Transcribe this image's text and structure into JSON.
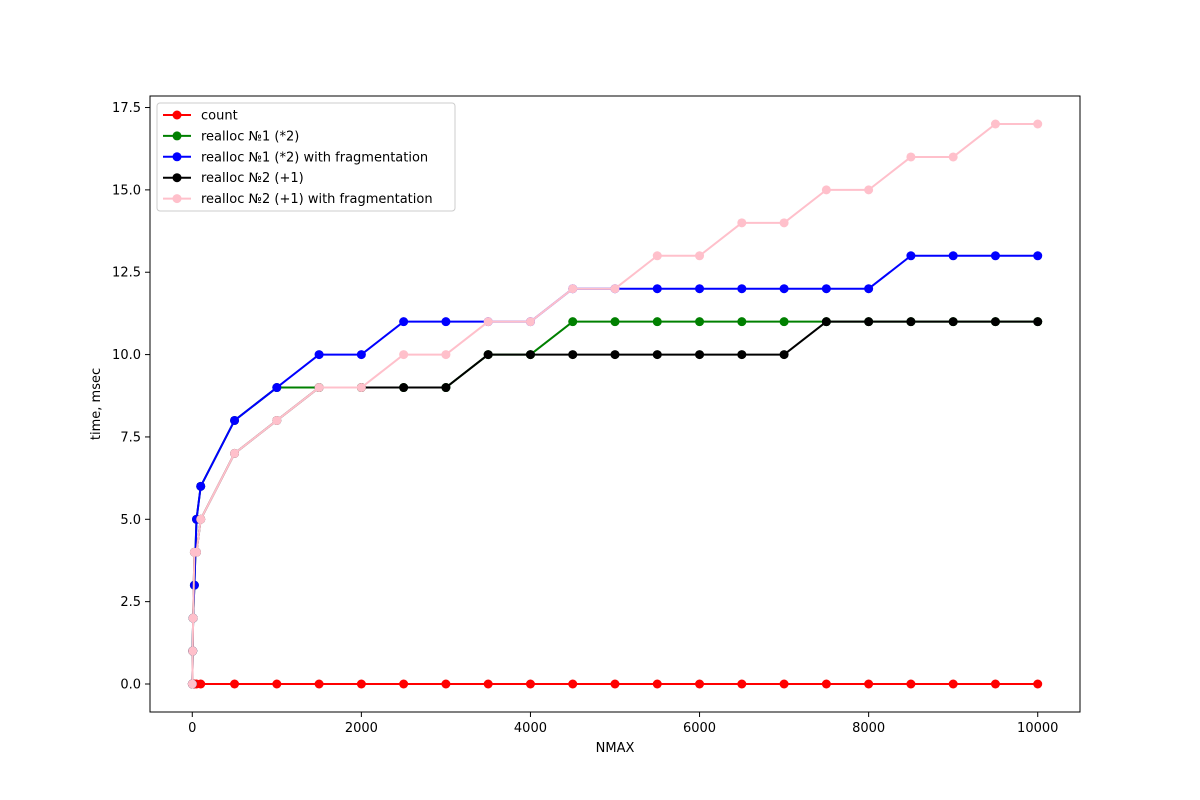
{
  "chart_data": {
    "type": "line",
    "title": "",
    "xlabel": "NMAX",
    "ylabel": "time, msec",
    "xlim": [
      -500,
      10500
    ],
    "ylim": [
      -0.85,
      17.85
    ],
    "xticks": [
      0,
      2000,
      4000,
      6000,
      8000,
      10000
    ],
    "xtick_labels": [
      "0",
      "2000",
      "4000",
      "6000",
      "8000",
      "10000"
    ],
    "yticks": [
      0,
      2.5,
      5,
      7.5,
      10,
      12.5,
      15,
      17.5
    ],
    "ytick_labels": [
      "0.0",
      "2.5",
      "5.0",
      "7.5",
      "10.0",
      "12.5",
      "15.0",
      "17.5"
    ],
    "grid": false,
    "legend_position": "top-left",
    "x": [
      1,
      5,
      10,
      25,
      50,
      100,
      500,
      1000,
      1500,
      2000,
      2500,
      3000,
      3500,
      4000,
      4500,
      5000,
      5500,
      6000,
      6500,
      7000,
      7500,
      8000,
      8500,
      9000,
      9500,
      10000
    ],
    "series": [
      {
        "name": "count",
        "color": "#ff0000",
        "values": [
          0,
          0,
          0,
          0,
          0,
          0,
          0,
          0,
          0,
          0,
          0,
          0,
          0,
          0,
          0,
          0,
          0,
          0,
          0,
          0,
          0,
          0,
          0,
          0,
          0,
          0
        ]
      },
      {
        "name": "realloc №1 (*2)",
        "color": "#008000",
        "values": [
          0,
          1,
          2,
          3,
          5,
          6,
          8,
          9,
          9,
          9,
          9,
          9,
          10,
          10,
          11,
          11,
          11,
          11,
          11,
          11,
          11,
          11,
          11,
          11,
          11,
          11
        ]
      },
      {
        "name": "realloc №1 (*2) with fragmentation",
        "color": "#0000ff",
        "values": [
          0,
          1,
          2,
          3,
          5,
          6,
          8,
          9,
          10,
          10,
          11,
          11,
          11,
          11,
          12,
          12,
          12,
          12,
          12,
          12,
          12,
          12,
          13,
          13,
          13,
          13
        ]
      },
      {
        "name": "realloc №2 (+1)",
        "color": "#000000",
        "values": [
          0,
          1,
          2,
          4,
          4,
          5,
          7,
          8,
          9,
          9,
          9,
          9,
          10,
          10,
          10,
          10,
          10,
          10,
          10,
          10,
          11,
          11,
          11,
          11,
          11,
          11
        ]
      },
      {
        "name": "realloc №2 (+1) with fragmentation",
        "color": "#ffc0cb",
        "values": [
          0,
          1,
          2,
          4,
          4,
          5,
          7,
          8,
          9,
          9,
          10,
          10,
          11,
          11,
          12,
          12,
          13,
          13,
          14,
          14,
          15,
          15,
          16,
          16,
          17,
          17
        ]
      }
    ]
  }
}
